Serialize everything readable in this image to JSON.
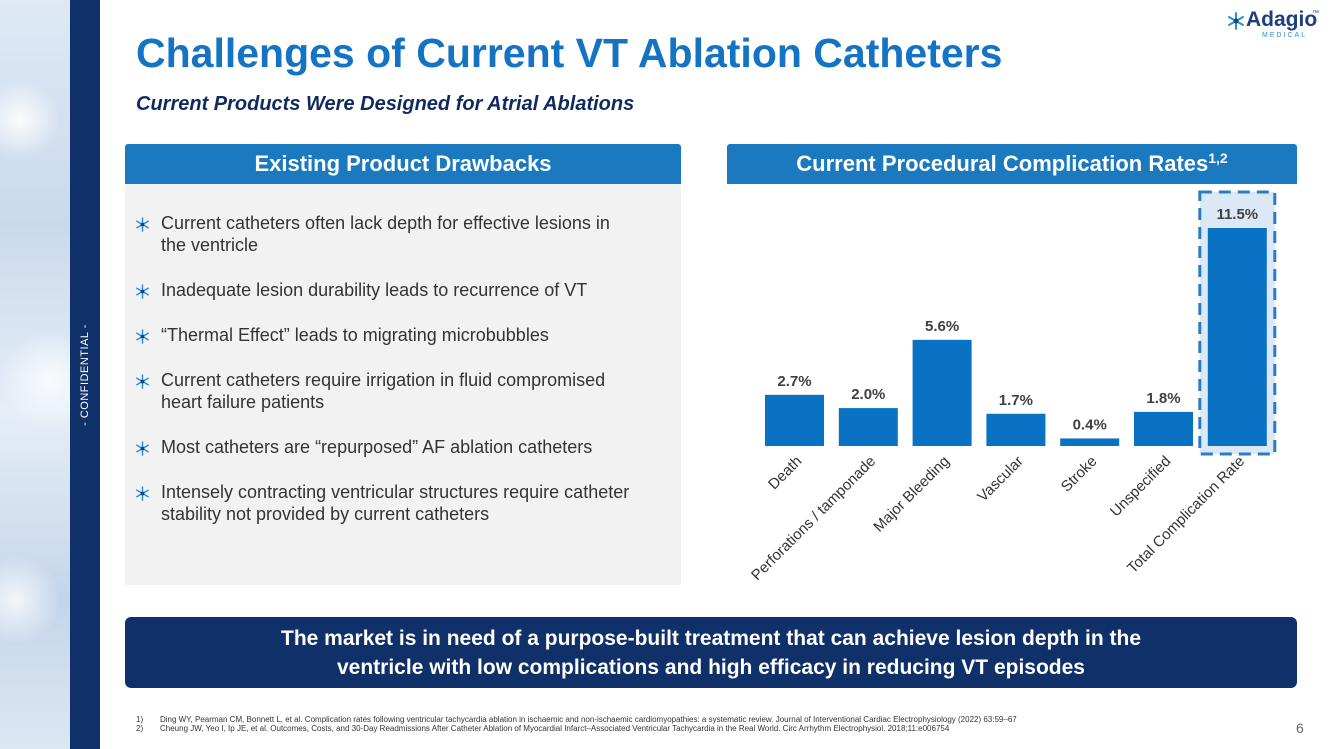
{
  "sidebar": {
    "confidential_label": "- CONFIDENTIAL -"
  },
  "logo": {
    "name": "Adagio",
    "tm": "™",
    "subtext": "MEDICAL"
  },
  "title": "Challenges of Current VT Ablation Catheters",
  "subtitle": "Current Products Were Designed for Atrial Ablations",
  "left_panel": {
    "header": "Existing Product Drawbacks",
    "bullets": [
      [
        "Current catheters often lack depth for effective lesions in",
        "the ventricle"
      ],
      [
        "Inadequate lesion durability leads to recurrence of VT"
      ],
      [
        "“Thermal Effect” leads to migrating microbubbles"
      ],
      [
        "Current catheters require irrigation in fluid compromised",
        "heart failure patients"
      ],
      [
        "Most catheters are “repurposed” AF ablation catheters"
      ],
      [
        "Intensely contracting ventricular structures require catheter",
        "stability not provided by current catheters"
      ]
    ]
  },
  "right_panel": {
    "header": "Current Procedural Complication Rates",
    "header_sup": "1,2"
  },
  "chart_data": {
    "type": "bar",
    "title": "Current Procedural Complication Rates",
    "categories": [
      "Death",
      "Perforations / tamponade",
      "Major Bleeding",
      "Vascular",
      "Stroke",
      "Unspecified",
      "Total Complication Rate"
    ],
    "values": [
      2.7,
      2.0,
      5.6,
      1.7,
      0.4,
      1.8,
      11.5
    ],
    "labels": [
      "2.7%",
      "2.0%",
      "5.6%",
      "1.7%",
      "0.4%",
      "1.8%",
      "11.5%"
    ],
    "highlight": "Total Complication Rate",
    "ylim": [
      0,
      11.5
    ],
    "unit": "%",
    "grid": false,
    "legend": "none",
    "colors": {
      "bar": "#0a72c2",
      "highlight_fill": "#dce8f5",
      "highlight_border": "#2a7cc4",
      "label": "#404040"
    }
  },
  "banner": {
    "line1": "The market is in need of a purpose-built treatment that can achieve lesion depth in the",
    "line2": "ventricle with low complications and high efficacy in reducing VT episodes"
  },
  "references": [
    {
      "num": "1)",
      "text": "Ding WY, Pearman CM, Bonnett L, et al. Complication rates following ventricular tachycardia ablation in ischaemic and non-ischaemic cardiomyopathies: a systematic review. Journal of Interventional Cardiac Electrophysiology (2022) 63:59–67"
    },
    {
      "num": "2)",
      "text": "Cheung JW, Yeo I, Ip JE, et al. Outcomes, Costs, and 30-Day Readmissions After Catheter Ablation of Myocardial Infarct–Associated Ventricular Tachycardia in the Real World. Circ Arrhythm Electrophysiol. 2018;11:e006754"
    }
  ],
  "page_number": "6"
}
